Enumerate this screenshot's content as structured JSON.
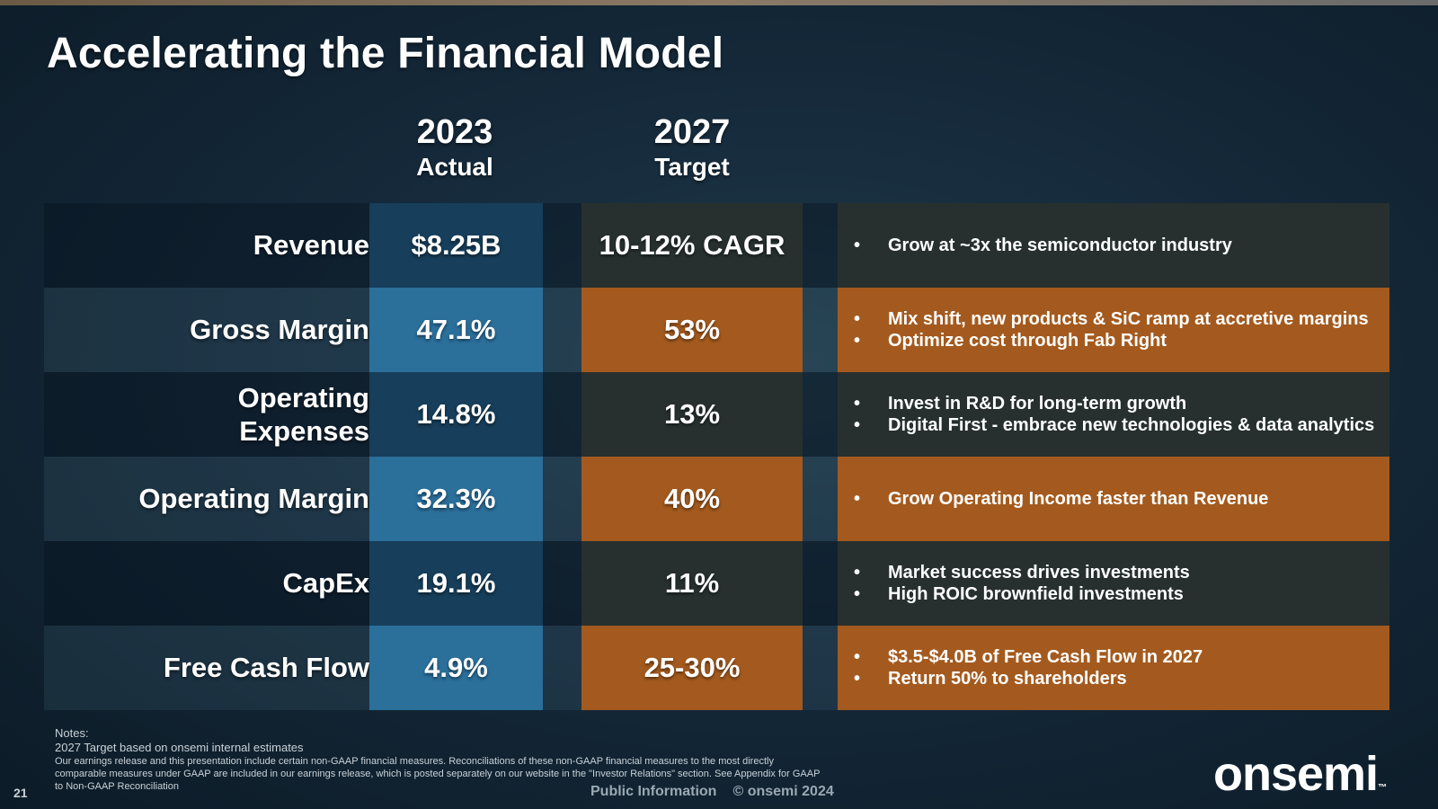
{
  "title": "Accelerating the Financial Model",
  "columns": {
    "actual_year": "2023",
    "actual_label": "Actual",
    "target_year": "2027",
    "target_label": "Target"
  },
  "rows": [
    {
      "metric": "Revenue",
      "actual": "$8.25B",
      "target": "10-12% CAGR",
      "notes": [
        "Grow at ~3x the semiconductor industry"
      ]
    },
    {
      "metric": "Gross Margin",
      "actual": "47.1%",
      "target": "53%",
      "notes": [
        "Mix shift, new products & SiC ramp at accretive margins",
        "Optimize cost through Fab Right"
      ]
    },
    {
      "metric": "Operating Expenses",
      "actual": "14.8%",
      "target": "13%",
      "notes": [
        "Invest in R&D for long-term growth",
        "Digital First - embrace new technologies & data analytics"
      ]
    },
    {
      "metric": "Operating Margin",
      "actual": "32.3%",
      "target": "40%",
      "notes": [
        "Grow Operating Income faster than Revenue"
      ]
    },
    {
      "metric": "CapEx",
      "actual": "19.1%",
      "target": "11%",
      "notes": [
        "Market success drives investments",
        "High ROIC brownfield investments"
      ]
    },
    {
      "metric": "Free Cash Flow",
      "actual": "4.9%",
      "target": "25-30%",
      "notes": [
        "$3.5-$4.0B of Free Cash Flow in 2027",
        "Return 50% to shareholders"
      ]
    }
  ],
  "footnotes": {
    "heading": "Notes:",
    "line1": "2027 Target based on onsemi internal estimates",
    "line2": "Our earnings release and this presentation include certain non-GAAP financial measures. Reconciliations of these non-GAAP financial measures to the most directly comparable measures under GAAP are included in our earnings release, which is posted separately on our website in the \"Investor Relations\" section. See Appendix for GAAP to Non-GAAP Reconciliation"
  },
  "footer": {
    "page_number": "21",
    "classification": "Public Information",
    "copyright": "© onsemi 2024",
    "logo_text": "onsemi",
    "logo_mark": "™"
  }
}
